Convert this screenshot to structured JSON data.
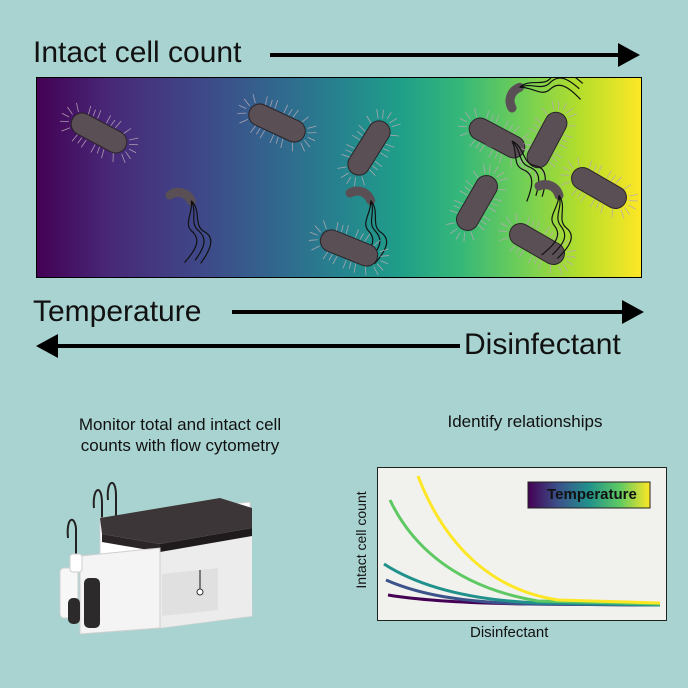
{
  "top": {
    "intact_label": "Intact cell count"
  },
  "arrows": {
    "temperature_label": "Temperature",
    "disinfectant_label": "Disinfectant"
  },
  "left_panel": {
    "caption_line1": "Monitor total and intact cell",
    "caption_line2": "counts with flow cytometry"
  },
  "right_panel": {
    "caption": "Identify relationships",
    "chart_data": {
      "type": "line",
      "xlabel": "Disinfectant",
      "ylabel": "Intact cell count",
      "legend": "Temperature",
      "legend_placement": "top-right",
      "series_colors": [
        "#440154",
        "#3b528b",
        "#21918c",
        "#5ec962",
        "#fde725"
      ],
      "grid": false
    }
  },
  "colors": {
    "background": "#a9d3d0",
    "cell": "#5a4f55"
  }
}
